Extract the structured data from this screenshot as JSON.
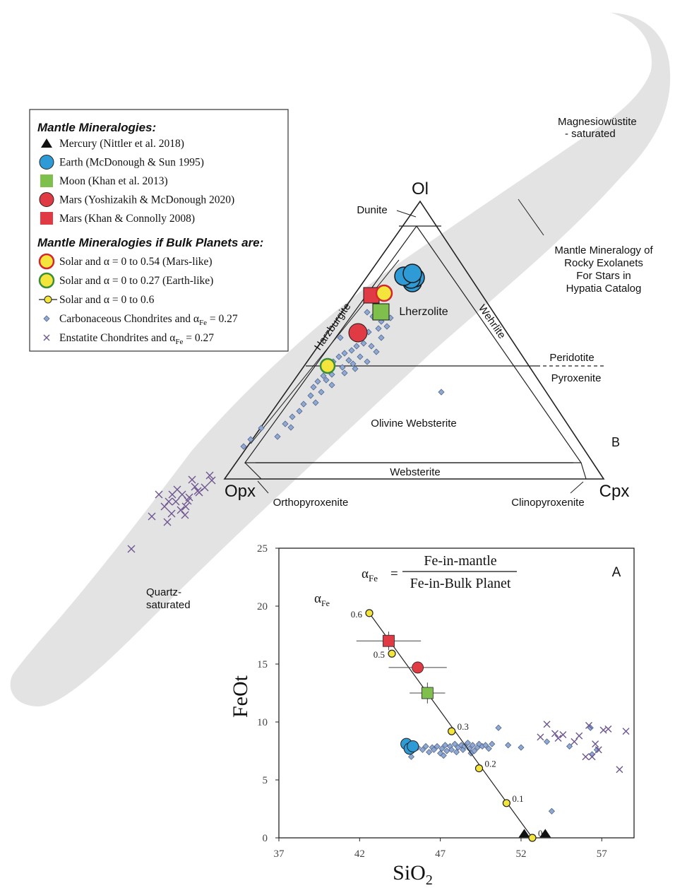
{
  "legend": {
    "heading1": "Mantle Mineralogies:",
    "items1": [
      {
        "label": "Mercury (Nittler et al. 2018)",
        "symbol": "triangle",
        "color": "#111111"
      },
      {
        "label": "Earth (McDonough & Sun 1995)",
        "symbol": "circle",
        "color": "#2e9bd6"
      },
      {
        "label": "Moon (Khan et al. 2013)",
        "symbol": "square",
        "color": "#7fbf4c"
      },
      {
        "label": "Mars (Yoshizakih & McDonough 2020)",
        "symbol": "circle",
        "color": "#e03a45"
      },
      {
        "label": "Mars (Khan & Connolly 2008)",
        "symbol": "square",
        "color": "#e03a45"
      }
    ],
    "heading2": "Mantle Mineralogies if Bulk Planets are:",
    "items2": [
      {
        "label": "Solar and α = 0 to 0.54 (Mars-like)",
        "symbol": "circle-yellow-red"
      },
      {
        "label": "Solar and α = 0 to 0.27 (Earth-like)",
        "symbol": "circle-yellow-green"
      },
      {
        "label": "Solar and α = 0 to 0.6",
        "symbol": "line-dot"
      },
      {
        "label": "Carbonaceous Chondrites and α",
        "sub": "Fe",
        "tail": " = 0.27",
        "symbol": "diamond"
      },
      {
        "label": "Enstatite Chondrites and α",
        "sub": "Fe",
        "tail": " = 0.27",
        "symbol": "cross"
      }
    ]
  },
  "colors": {
    "band": "#e3e3e3",
    "diamond": "#8fa9d3",
    "diamond_edge": "#52658c",
    "cross": "#6e5690",
    "yellow": "#f3e53c",
    "earth": "#2e9bd6",
    "moon": "#7fbf4c",
    "mars": "#e03a45"
  },
  "ternary": {
    "apices": {
      "top": "Ol",
      "left": "Opx",
      "right": "Cpx"
    },
    "fields": {
      "dunite": "Dunite",
      "harzburgite": "Harzburgite",
      "lherzolite": "Lherzolite",
      "wehrlite": "Wehrlite",
      "olivine_websterite": "Olivine Websterite",
      "websterite": "Websterite",
      "orthopyroxenite": "Orthopyroxenite",
      "clinopyroxenite": "Clinopyroxenite",
      "peridotite": "Peridotite",
      "pyroxenite": "Pyroxenite"
    },
    "panel_label": "B",
    "band_labels": {
      "magnesio": [
        "Magnesiowüstite",
        "- saturated"
      ],
      "quartz": [
        "Quartz-",
        "saturated"
      ],
      "hypatia": [
        "Mantle Mineralogy of",
        "Rocky Exolanets",
        "For Stars in",
        "Hypatia Catalog"
      ]
    }
  },
  "chart_data": {
    "type": "scatter",
    "panel_label": "A",
    "xlabel": "SiO",
    "xlabel_sub": "2",
    "ylabel": "FeOt",
    "xlim": [
      37,
      59
    ],
    "ylim": [
      0,
      25
    ],
    "xticks": [
      37,
      42,
      47,
      52,
      57
    ],
    "yticks": [
      0,
      5,
      10,
      15,
      20,
      25
    ],
    "formula": {
      "lhs": "α",
      "lhs_sub": "Fe",
      "eq": "=",
      "num": "Fe-in-mantle",
      "den": "Fe-in-Bulk Planet"
    },
    "alpha_label": {
      "text": "α",
      "sub": "Fe"
    },
    "solar_line": [
      {
        "x": 42.6,
        "y": 19.4,
        "label": "0.6"
      },
      {
        "x": 44.0,
        "y": 15.9,
        "label": "0.5"
      },
      {
        "x": 47.7,
        "y": 9.2,
        "label": "0.3"
      },
      {
        "x": 49.4,
        "y": 6.0,
        "label": "0.2"
      },
      {
        "x": 51.1,
        "y": 3.0,
        "label": "0.1"
      },
      {
        "x": 52.7,
        "y": 0.0,
        "label": "0"
      }
    ],
    "mercury": [
      {
        "x": 52.2,
        "y": 0.1
      },
      {
        "x": 53.5,
        "y": 0.1
      }
    ],
    "earth": [
      {
        "x": 44.9,
        "y": 8.1
      },
      {
        "x": 45.1,
        "y": 7.7
      },
      {
        "x": 45.3,
        "y": 7.9
      }
    ],
    "moon": {
      "x": 46.2,
      "y": 12.5,
      "xerr": 1.1,
      "yerr": 0.9
    },
    "mars_yoshizaki": {
      "x": 45.6,
      "y": 14.7,
      "xerr": 1.8,
      "yerr": 0.0
    },
    "mars_khan": {
      "x": 43.8,
      "y": 17.0,
      "xerr": 2.0,
      "yerr": 0.8
    },
    "carbonaceous": [
      {
        "x": 45.2,
        "y": 7.0
      },
      {
        "x": 45.6,
        "y": 7.8
      },
      {
        "x": 45.9,
        "y": 7.6
      },
      {
        "x": 46.1,
        "y": 7.9
      },
      {
        "x": 46.3,
        "y": 7.4
      },
      {
        "x": 46.5,
        "y": 7.8
      },
      {
        "x": 46.6,
        "y": 7.6
      },
      {
        "x": 46.8,
        "y": 7.9
      },
      {
        "x": 47.0,
        "y": 7.3
      },
      {
        "x": 47.1,
        "y": 7.7
      },
      {
        "x": 47.3,
        "y": 8.0
      },
      {
        "x": 47.4,
        "y": 7.5
      },
      {
        "x": 47.6,
        "y": 7.9
      },
      {
        "x": 47.7,
        "y": 7.6
      },
      {
        "x": 47.9,
        "y": 8.1
      },
      {
        "x": 48.0,
        "y": 7.4
      },
      {
        "x": 48.1,
        "y": 7.8
      },
      {
        "x": 48.3,
        "y": 8.0
      },
      {
        "x": 48.4,
        "y": 7.6
      },
      {
        "x": 48.5,
        "y": 7.9
      },
      {
        "x": 48.7,
        "y": 8.2
      },
      {
        "x": 48.8,
        "y": 7.7
      },
      {
        "x": 49.0,
        "y": 8.0
      },
      {
        "x": 49.1,
        "y": 7.5
      },
      {
        "x": 49.3,
        "y": 7.8
      },
      {
        "x": 49.4,
        "y": 8.1
      },
      {
        "x": 49.6,
        "y": 7.9
      },
      {
        "x": 49.8,
        "y": 8.0
      },
      {
        "x": 50.0,
        "y": 7.7
      },
      {
        "x": 50.2,
        "y": 8.1
      },
      {
        "x": 47.2,
        "y": 7.1
      },
      {
        "x": 48.9,
        "y": 7.3
      },
      {
        "x": 50.6,
        "y": 9.5
      },
      {
        "x": 51.2,
        "y": 8.0
      },
      {
        "x": 52.0,
        "y": 7.8
      },
      {
        "x": 53.6,
        "y": 8.3
      },
      {
        "x": 55.0,
        "y": 7.9
      },
      {
        "x": 56.3,
        "y": 9.5
      },
      {
        "x": 56.4,
        "y": 7.2
      },
      {
        "x": 56.7,
        "y": 7.6
      },
      {
        "x": 53.9,
        "y": 2.3
      }
    ],
    "enstatite": [
      {
        "x": 53.2,
        "y": 8.7
      },
      {
        "x": 54.1,
        "y": 9.0
      },
      {
        "x": 54.3,
        "y": 8.6
      },
      {
        "x": 53.6,
        "y": 9.8
      },
      {
        "x": 54.6,
        "y": 8.9
      },
      {
        "x": 55.6,
        "y": 8.8
      },
      {
        "x": 56.2,
        "y": 9.7
      },
      {
        "x": 56.6,
        "y": 8.1
      },
      {
        "x": 56.8,
        "y": 7.6
      },
      {
        "x": 57.1,
        "y": 9.3
      },
      {
        "x": 57.4,
        "y": 9.4
      },
      {
        "x": 58.5,
        "y": 9.2
      },
      {
        "x": 58.1,
        "y": 5.9
      },
      {
        "x": 56.0,
        "y": 7.0
      },
      {
        "x": 56.4,
        "y": 7.0
      },
      {
        "x": 55.3,
        "y": 8.3
      }
    ]
  }
}
